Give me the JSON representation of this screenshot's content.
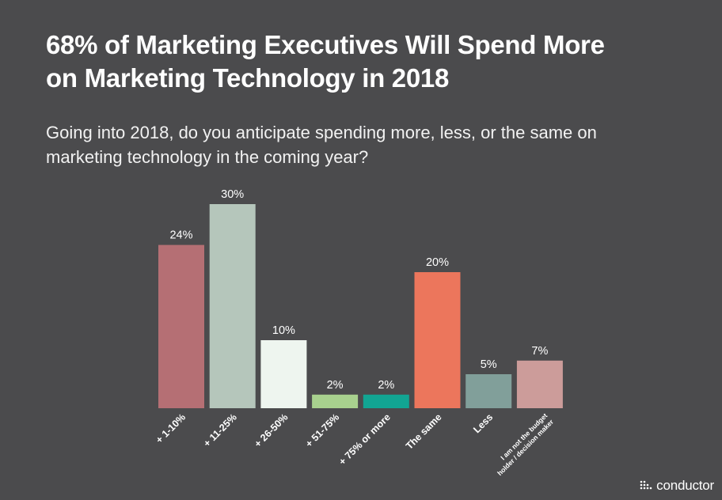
{
  "title_line1": "68% of Marketing Executives Will Spend More",
  "title_line2": "on Marketing Technology in 2018",
  "subtitle_line1": "Going into 2018, do you anticipate spending more, less, or the same on",
  "subtitle_line2": "marketing technology in the coming year?",
  "logo": {
    "text": "conductor",
    "icon": "conductor-dots-logo-icon"
  },
  "chart_data": {
    "type": "bar",
    "title": "68% of Marketing Executives Will Spend More on Marketing Technology in 2018",
    "subtitle": "Going into 2018, do you anticipate spending more, less, or the same on marketing technology in the coming year?",
    "categories": [
      "+ 1-10%",
      "+ 11-25%",
      "+ 26-50%",
      "+ 51-75%",
      "+ 75% or more",
      "The same",
      "Less",
      "I am not the budget holder / decision maker"
    ],
    "category_lines": [
      [
        "+ 1-10%"
      ],
      [
        "+ 11-25%"
      ],
      [
        "+ 26-50%"
      ],
      [
        "+ 51-75%"
      ],
      [
        "+ 75% or more"
      ],
      [
        "The same"
      ],
      [
        "Less"
      ],
      [
        "I am not the budget",
        "holder / decision maker"
      ]
    ],
    "values": [
      24,
      30,
      10,
      2,
      2,
      20,
      5,
      7
    ],
    "value_labels": [
      "24%",
      "30%",
      "10%",
      "2%",
      "2%",
      "20%",
      "5%",
      "7%"
    ],
    "colors": [
      "#b56f74",
      "#b5c6bb",
      "#eef5ef",
      "#a8d18e",
      "#12a593",
      "#ec765c",
      "#819f9a",
      "#cc9c9a"
    ],
    "xlabel": "",
    "ylabel": "",
    "ylim": [
      0,
      30
    ],
    "grid": false,
    "legend": "none"
  }
}
